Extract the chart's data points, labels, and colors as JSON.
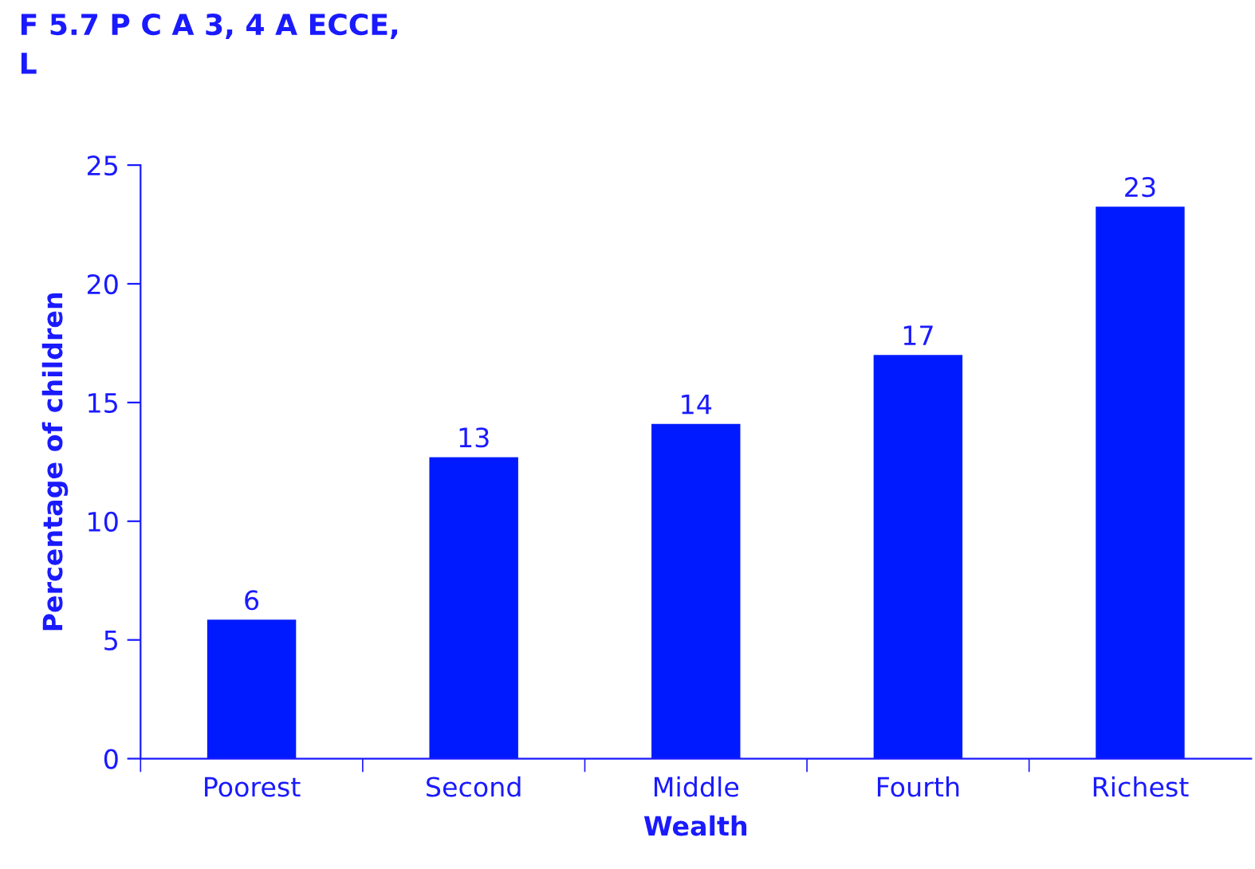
{
  "chart_data": {
    "type": "bar",
    "title": "F 5.7 P C A 3, 4 A ECCE,\nL",
    "xlabel": "Wealth",
    "ylabel": "Percentage of children",
    "categories": [
      "Poorest",
      "Second",
      "Middle",
      "Fourth",
      "Richest"
    ],
    "values": [
      5.85,
      12.7,
      14.1,
      17.0,
      23.25
    ],
    "value_labels": [
      "6",
      "13",
      "14",
      "17",
      "23"
    ],
    "color": "#001aff",
    "ylim": [
      0,
      25
    ],
    "yticks": [
      0,
      5,
      10,
      15,
      20,
      25
    ]
  }
}
